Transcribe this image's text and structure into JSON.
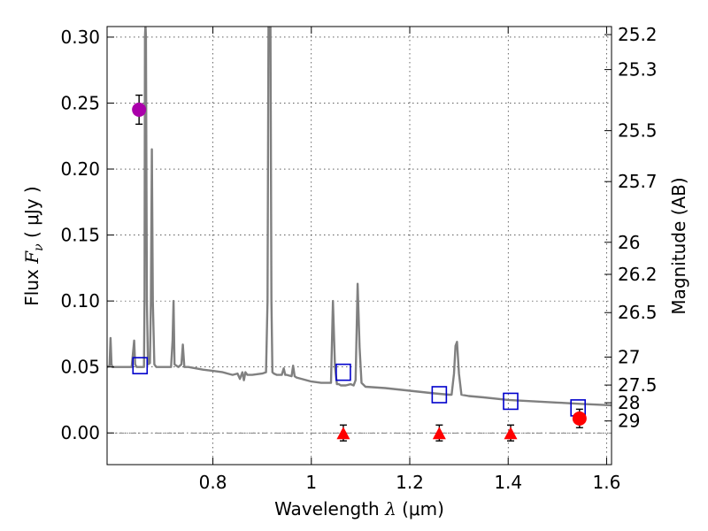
{
  "chart_data": {
    "type": "line",
    "xlabel_prefix": "Wavelength",
    "xlabel_symbol": "λ",
    "xlabel_unit": "(μm)",
    "ylabel_prefix": "Flux",
    "ylabel_symbol": "F",
    "ylabel_subscript": "ν",
    "ylabel_unit": "( μJy )",
    "y2label": "Magnitude (AB)",
    "xlim": [
      0.585,
      1.61
    ],
    "ylim": [
      -0.024,
      0.308
    ],
    "grid": true,
    "x_ticks": [
      0.8,
      1.0,
      1.2,
      1.4,
      1.6
    ],
    "x_tick_labels": [
      "0.8",
      "1",
      "1.2",
      "1.4",
      "1.6"
    ],
    "y_ticks": [
      0.0,
      0.05,
      0.1,
      0.15,
      0.2,
      0.25,
      0.3
    ],
    "y_tick_labels": [
      "0.00",
      "0.05",
      "0.10",
      "0.15",
      "0.20",
      "0.25",
      "0.30"
    ],
    "magnitude_ticks": [
      {
        "flux": 0.3019,
        "label": "25.2"
      },
      {
        "flux": 0.2754,
        "label": "25.3"
      },
      {
        "flux": 0.2291,
        "label": "25.5"
      },
      {
        "flux": 0.1905,
        "label": "25.7"
      },
      {
        "flux": 0.1445,
        "label": "26"
      },
      {
        "flux": 0.1202,
        "label": "26.2"
      },
      {
        "flux": 0.0912,
        "label": "26.5"
      },
      {
        "flux": 0.0575,
        "label": "27"
      },
      {
        "flux": 0.0363,
        "label": "27.5"
      },
      {
        "flux": 0.0229,
        "label": "28"
      },
      {
        "flux": 0.0091,
        "label": "29"
      }
    ],
    "series": [
      {
        "name": "model spectrum",
        "style": "line",
        "color": "#808080",
        "x": [
          0.585,
          0.59,
          0.592,
          0.594,
          0.596,
          0.6,
          0.62,
          0.635,
          0.64,
          0.642,
          0.645,
          0.65,
          0.655,
          0.66,
          0.661,
          0.662,
          0.663,
          0.664,
          0.666,
          0.668,
          0.672,
          0.674,
          0.676,
          0.678,
          0.681,
          0.685,
          0.69,
          0.7,
          0.715,
          0.718,
          0.72,
          0.722,
          0.73,
          0.736,
          0.739,
          0.742,
          0.75,
          0.78,
          0.8,
          0.82,
          0.83,
          0.84,
          0.85,
          0.855,
          0.86,
          0.863,
          0.866,
          0.87,
          0.88,
          0.9,
          0.908,
          0.911,
          0.913,
          0.915,
          0.917,
          0.919,
          0.921,
          0.924,
          0.93,
          0.94,
          0.944,
          0.947,
          0.95,
          0.96,
          0.963,
          0.966,
          0.97,
          0.98,
          1.0,
          1.02,
          1.03,
          1.04,
          1.044,
          1.048,
          1.052,
          1.056,
          1.06,
          1.07,
          1.08,
          1.086,
          1.09,
          1.094,
          1.098,
          1.102,
          1.11,
          1.15,
          1.2,
          1.25,
          1.28,
          1.285,
          1.29,
          1.293,
          1.296,
          1.3,
          1.305,
          1.32,
          1.35,
          1.4,
          1.45,
          1.5,
          1.55,
          1.61
        ],
        "y": [
          0.05,
          0.051,
          0.072,
          0.052,
          0.05,
          0.05,
          0.05,
          0.05,
          0.07,
          0.052,
          0.05,
          0.05,
          0.05,
          0.05,
          0.1,
          0.3,
          0.31,
          0.3,
          0.1,
          0.052,
          0.053,
          0.1,
          0.215,
          0.1,
          0.052,
          0.05,
          0.05,
          0.05,
          0.05,
          0.07,
          0.1,
          0.052,
          0.05,
          0.052,
          0.067,
          0.05,
          0.05,
          0.048,
          0.047,
          0.046,
          0.045,
          0.044,
          0.045,
          0.041,
          0.046,
          0.04,
          0.046,
          0.044,
          0.044,
          0.045,
          0.046,
          0.1,
          0.31,
          0.31,
          0.31,
          0.1,
          0.046,
          0.045,
          0.044,
          0.044,
          0.049,
          0.044,
          0.044,
          0.043,
          0.051,
          0.043,
          0.042,
          0.041,
          0.039,
          0.038,
          0.038,
          0.038,
          0.1,
          0.05,
          0.037,
          0.037,
          0.036,
          0.036,
          0.037,
          0.036,
          0.04,
          0.113,
          0.065,
          0.038,
          0.035,
          0.034,
          0.032,
          0.03,
          0.029,
          0.029,
          0.045,
          0.066,
          0.069,
          0.045,
          0.029,
          0.028,
          0.027,
          0.025,
          0.024,
          0.023,
          0.022,
          0.021
        ]
      },
      {
        "name": "model photometry",
        "style": "open-square",
        "color": "#0000cc",
        "x": [
          0.652,
          1.065,
          1.26,
          1.405,
          1.542
        ],
        "y": [
          0.051,
          0.046,
          0.029,
          0.024,
          0.019
        ]
      },
      {
        "name": "detection (magenta)",
        "style": "circle",
        "color": "#aa00aa",
        "x": [
          0.65
        ],
        "y": [
          0.245
        ],
        "err": [
          0.011
        ]
      },
      {
        "name": "detection (red)",
        "style": "circle",
        "color": "#ff0000",
        "x": [
          1.545
        ],
        "y": [
          0.011
        ],
        "err": [
          0.007
        ]
      },
      {
        "name": "non-detections",
        "style": "triangle",
        "color": "#ff0000",
        "x": [
          1.065,
          1.26,
          1.405
        ],
        "y": [
          0.0,
          0.0,
          0.0
        ],
        "err": [
          0.006,
          0.006,
          0.006
        ]
      }
    ]
  }
}
